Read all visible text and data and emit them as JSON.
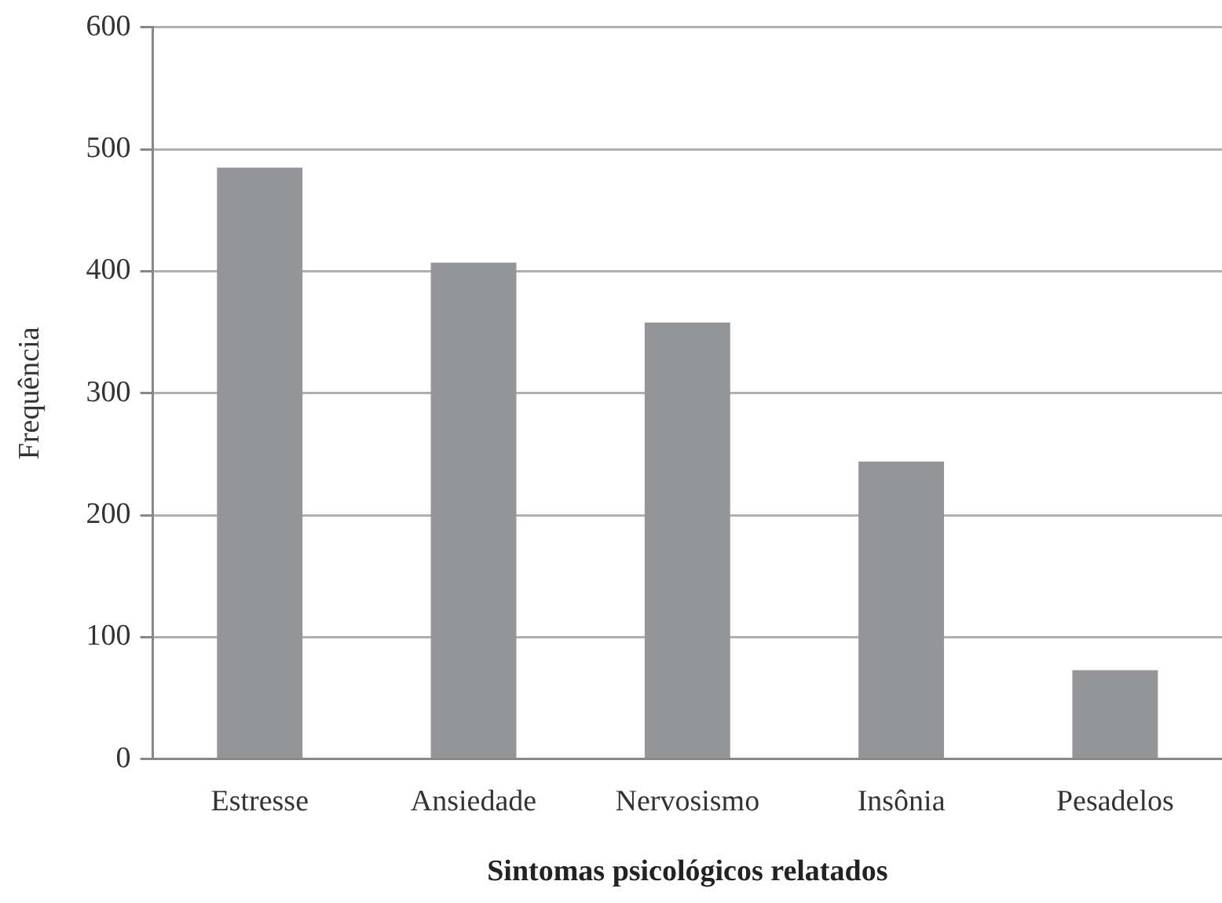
{
  "chart_data": {
    "type": "bar",
    "xlabel": "Sintomas psicológicos relatados",
    "ylabel": "Frequência",
    "categories": [
      "Estresse",
      "Ansiedade",
      "Nervosismo",
      "Insônia",
      "Pesadelos"
    ],
    "values": [
      485,
      407,
      358,
      244,
      73
    ],
    "color": "#939598",
    "ylim": [
      0,
      600
    ],
    "yticks": [
      0,
      100,
      200,
      300,
      400,
      500,
      600
    ],
    "grid": "y",
    "legend": false
  }
}
